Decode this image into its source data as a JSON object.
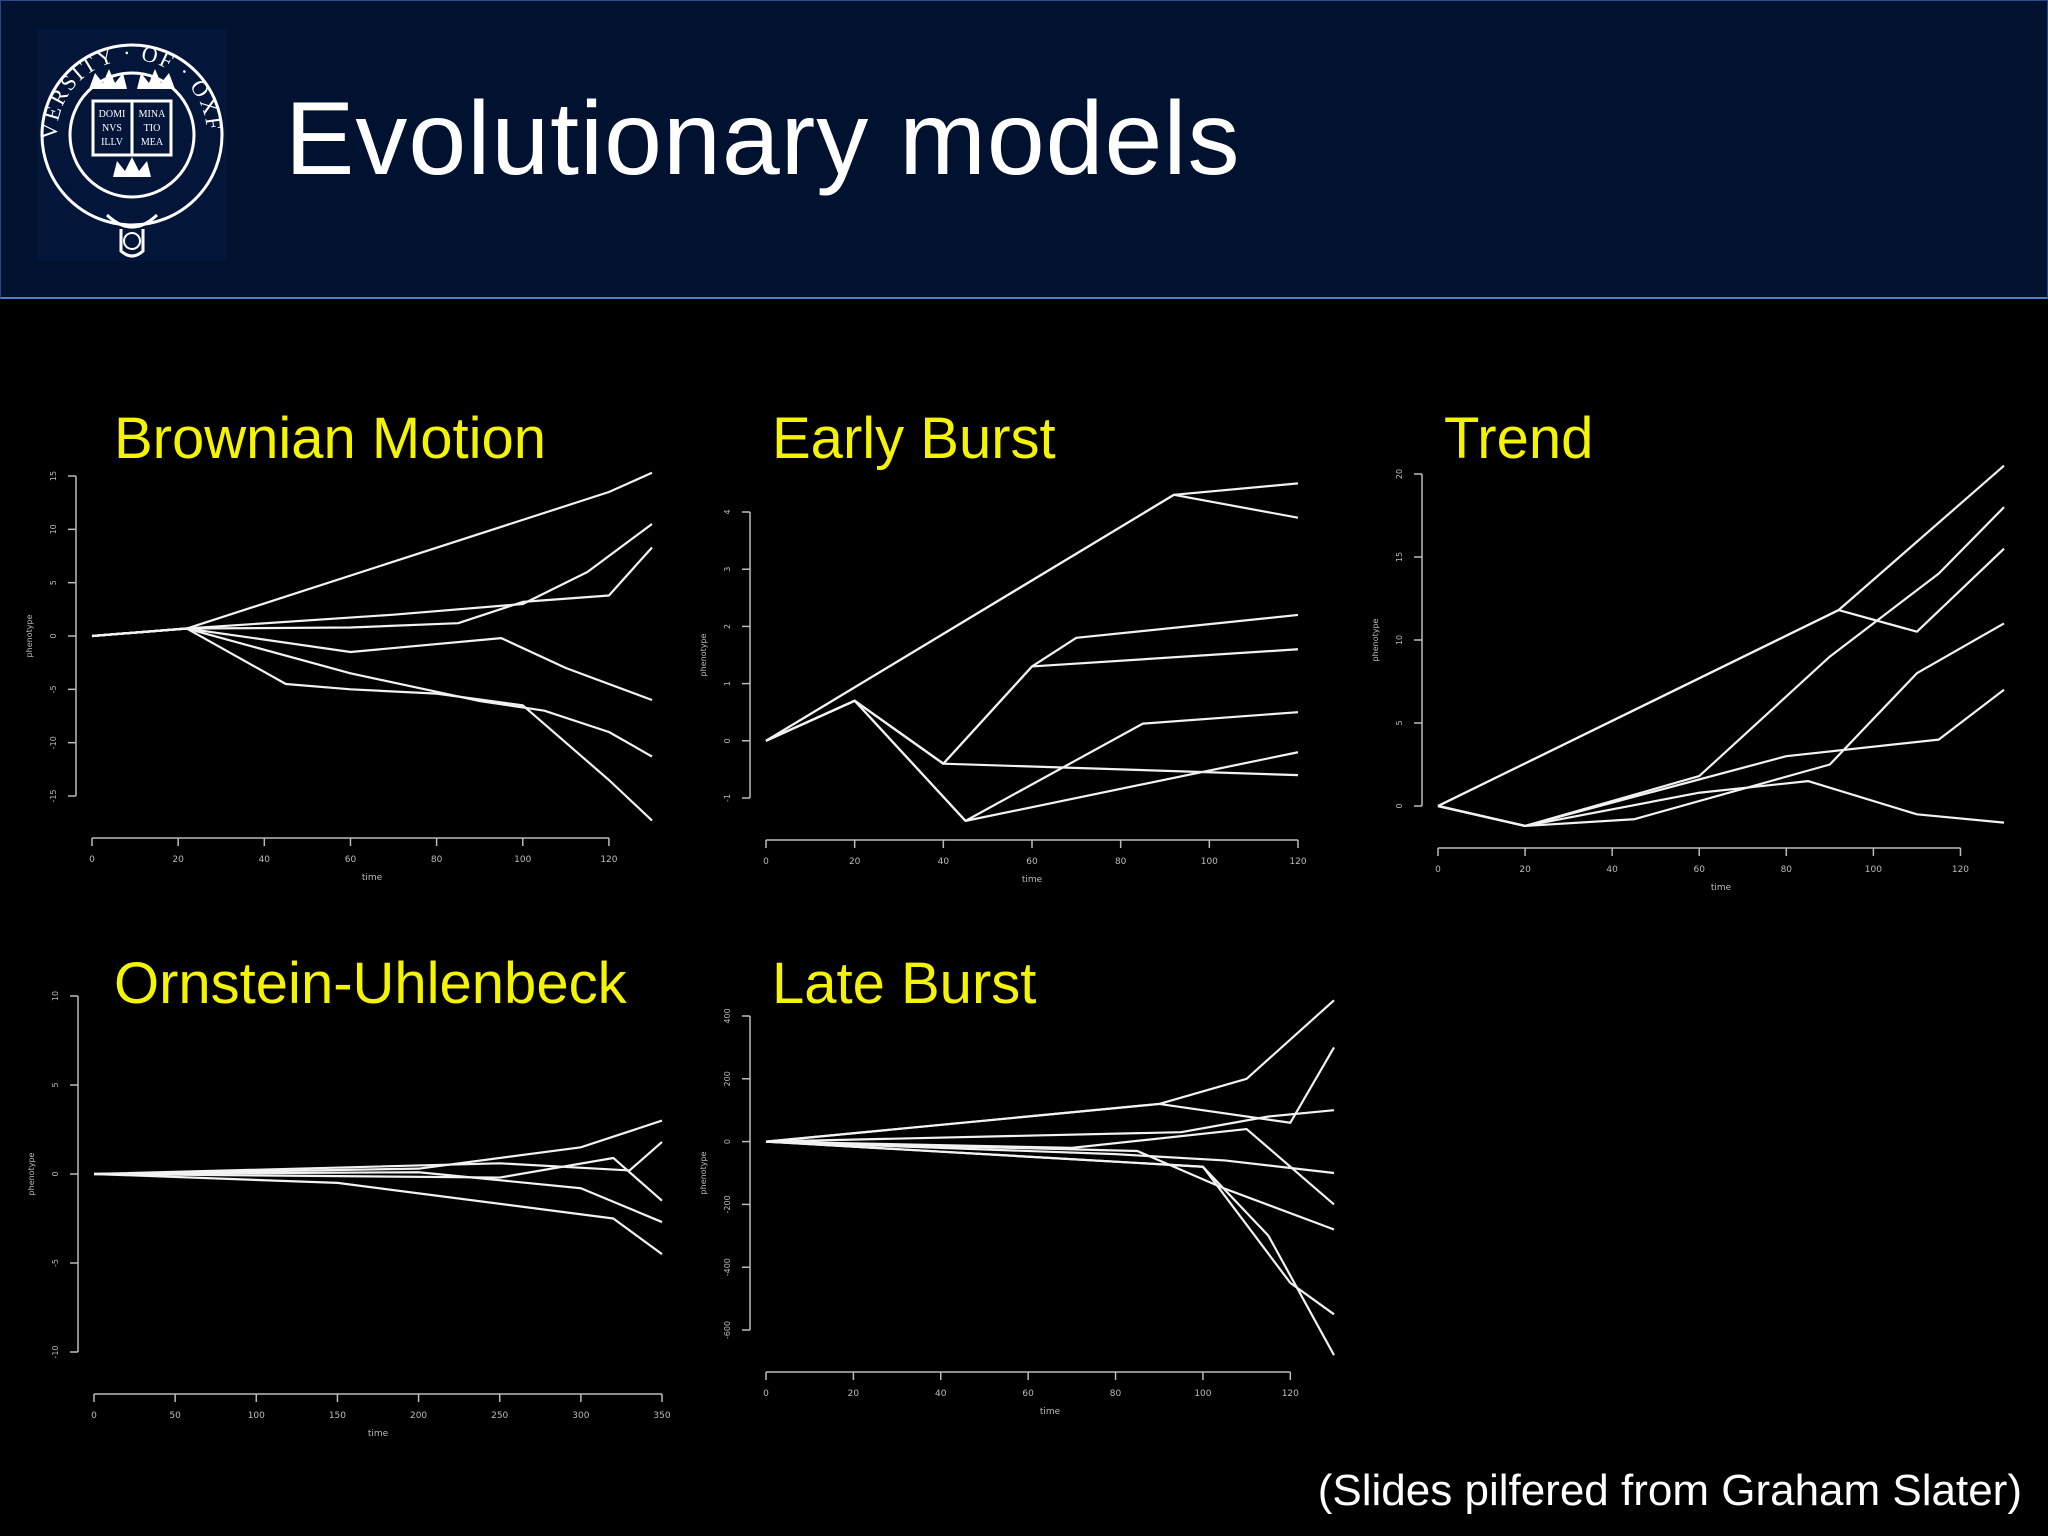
{
  "slide": {
    "title": "Evolutionary models",
    "footer": "(Slides pilfered from Graham Slater)",
    "logo_text": "UNIVERSITY · OF · OXFORD",
    "logo_book": [
      "DOMI",
      "NVS",
      "ILLV",
      "MINA",
      "TIO",
      "MEA"
    ]
  },
  "chart_data": [
    {
      "type": "line",
      "title": "Brownian Motion",
      "xlabel": "time",
      "ylabel": "phenotype",
      "xlim": [
        0,
        130
      ],
      "ylim": [
        -15,
        15
      ],
      "xticks": [
        0,
        20,
        40,
        60,
        80,
        100,
        120
      ],
      "yticks": [
        -15,
        -10,
        -5,
        0,
        5,
        10,
        15
      ],
      "series": [
        {
          "x": [
            0,
            22,
            120,
            130
          ],
          "y": [
            0,
            0.7,
            13.5,
            15.3
          ]
        },
        {
          "x": [
            0,
            22,
            45,
            60,
            80,
            100,
            120,
            130
          ],
          "y": [
            0,
            0.7,
            -4.5,
            -5,
            -5.4,
            -6.5,
            -13.5,
            -17.3
          ]
        },
        {
          "x": [
            0,
            22,
            60,
            85,
            100,
            120,
            130
          ],
          "y": [
            0,
            0.7,
            0.8,
            1.2,
            3.2,
            3.8,
            8.3
          ]
        },
        {
          "x": [
            0,
            22,
            60,
            90,
            105,
            120,
            130
          ],
          "y": [
            0,
            0.7,
            -3.5,
            -6.1,
            -7,
            -9,
            -11.3
          ]
        },
        {
          "x": [
            0,
            22,
            60,
            95,
            110,
            130
          ],
          "y": [
            0,
            0.7,
            -1.5,
            -0.2,
            -3,
            -6
          ]
        },
        {
          "x": [
            0,
            22,
            70,
            100,
            115,
            130
          ],
          "y": [
            0,
            0.7,
            2,
            3,
            6,
            10.5
          ]
        }
      ]
    },
    {
      "type": "line",
      "title": "Early Burst",
      "xlabel": "time",
      "ylabel": "phenotype",
      "xlim": [
        0,
        120
      ],
      "ylim": [
        -1,
        4
      ],
      "xticks": [
        0,
        20,
        40,
        60,
        80,
        100,
        120
      ],
      "yticks": [
        -1,
        0,
        1,
        2,
        3,
        4
      ],
      "series": [
        {
          "x": [
            0,
            92,
            120
          ],
          "y": [
            0,
            4.3,
            4.5
          ]
        },
        {
          "x": [
            0,
            92,
            120
          ],
          "y": [
            0,
            4.3,
            3.9
          ]
        },
        {
          "x": [
            0,
            20,
            40,
            60,
            70,
            120
          ],
          "y": [
            0,
            0.7,
            -0.4,
            1.3,
            1.8,
            2.2
          ]
        },
        {
          "x": [
            0,
            20,
            40,
            60,
            120
          ],
          "y": [
            0,
            0.7,
            -0.4,
            1.3,
            1.6
          ]
        },
        {
          "x": [
            0,
            20,
            45,
            85,
            120
          ],
          "y": [
            0,
            0.7,
            -1.4,
            0.3,
            0.5
          ]
        },
        {
          "x": [
            0,
            20,
            45,
            120
          ],
          "y": [
            0,
            0.7,
            -1.4,
            -0.2
          ]
        },
        {
          "x": [
            0,
            20,
            40,
            120
          ],
          "y": [
            0,
            0.7,
            -0.4,
            -0.6
          ]
        }
      ]
    },
    {
      "type": "line",
      "title": "Trend",
      "xlabel": "time",
      "ylabel": "phenotype",
      "xlim": [
        0,
        130
      ],
      "ylim": [
        0,
        20
      ],
      "xticks": [
        0,
        20,
        40,
        60,
        80,
        100,
        120
      ],
      "yticks": [
        0,
        5,
        10,
        15,
        20
      ],
      "series": [
        {
          "x": [
            0,
            92,
            130
          ],
          "y": [
            0,
            11.8,
            20.5
          ]
        },
        {
          "x": [
            0,
            92,
            110,
            130
          ],
          "y": [
            0,
            11.8,
            10.5,
            15.5
          ]
        },
        {
          "x": [
            0,
            20,
            60,
            90,
            115,
            130
          ],
          "y": [
            0,
            -1.2,
            1.8,
            9,
            14,
            18
          ]
        },
        {
          "x": [
            0,
            20,
            45,
            90,
            110,
            130
          ],
          "y": [
            0,
            -1.2,
            -0.8,
            2.5,
            8,
            11
          ]
        },
        {
          "x": [
            0,
            20,
            60,
            85,
            110,
            130
          ],
          "y": [
            0,
            -1.2,
            0.8,
            1.5,
            -0.5,
            -1
          ]
        },
        {
          "x": [
            0,
            20,
            80,
            115,
            130
          ],
          "y": [
            0,
            -1.2,
            3,
            4,
            7
          ]
        }
      ]
    },
    {
      "type": "line",
      "title": "Ornstein-Uhlenbeck",
      "xlabel": "time",
      "ylabel": "phenotype",
      "xlim": [
        0,
        350
      ],
      "ylim": [
        -10,
        10
      ],
      "xticks": [
        0,
        50,
        100,
        150,
        200,
        250,
        300,
        350
      ],
      "yticks": [
        -10,
        -5,
        0,
        5,
        10
      ],
      "series": [
        {
          "x": [
            0,
            200,
            300,
            350
          ],
          "y": [
            0,
            0.3,
            1.5,
            3
          ]
        },
        {
          "x": [
            0,
            150,
            320,
            350
          ],
          "y": [
            0,
            -0.5,
            -2.5,
            -4.5
          ]
        },
        {
          "x": [
            0,
            250,
            330,
            350
          ],
          "y": [
            0,
            0.6,
            0.2,
            1.8
          ]
        },
        {
          "x": [
            0,
            200,
            300,
            350
          ],
          "y": [
            0,
            0.1,
            -0.8,
            -2.7
          ]
        },
        {
          "x": [
            0,
            250,
            320,
            350
          ],
          "y": [
            0,
            -0.2,
            0.9,
            -1.5
          ]
        }
      ]
    },
    {
      "type": "line",
      "title": "Late Burst",
      "xlabel": "time",
      "ylabel": "phenotype",
      "xlim": [
        0,
        130
      ],
      "ylim": [
        -600,
        400
      ],
      "xticks": [
        0,
        20,
        40,
        60,
        80,
        100,
        120
      ],
      "yticks": [
        -600,
        -400,
        -200,
        0,
        200,
        400
      ],
      "series": [
        {
          "x": [
            0,
            90,
            110,
            130
          ],
          "y": [
            0,
            120,
            200,
            450
          ]
        },
        {
          "x": [
            0,
            90,
            120,
            130
          ],
          "y": [
            0,
            120,
            60,
            300
          ]
        },
        {
          "x": [
            0,
            100,
            115,
            130
          ],
          "y": [
            0,
            -80,
            -300,
            -680
          ]
        },
        {
          "x": [
            0,
            100,
            120,
            130
          ],
          "y": [
            0,
            -80,
            -450,
            -550
          ]
        },
        {
          "x": [
            0,
            85,
            105,
            130
          ],
          "y": [
            0,
            -30,
            -150,
            -280
          ]
        },
        {
          "x": [
            0,
            95,
            115,
            130
          ],
          "y": [
            0,
            30,
            80,
            100
          ]
        },
        {
          "x": [
            0,
            80,
            105,
            130
          ],
          "y": [
            0,
            -40,
            -60,
            -100
          ]
        },
        {
          "x": [
            0,
            70,
            110,
            130
          ],
          "y": [
            0,
            -20,
            40,
            -200
          ]
        }
      ]
    }
  ]
}
